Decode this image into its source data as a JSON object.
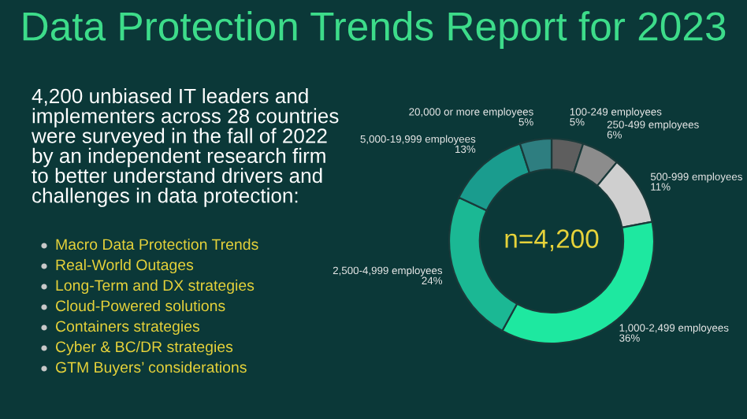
{
  "chart_data": {
    "type": "donut",
    "title": "Data Protection Trends Report for 2023",
    "subtitle": "4,200 unbiased IT leaders and\nimplementers across 28 countries\nwere surveyed in the fall of 2022\nby an independent research firm\nto better understand drivers and\nchallenges in data protection:",
    "categories": [
      "100-249 employees",
      "250-499 employees",
      "500-999 employees",
      "1,000-2,499 employees",
      "2,500-4,999 employees",
      "5,000-19,999 employees",
      "20,000 or more employees"
    ],
    "values": [
      5,
      6,
      11,
      36,
      24,
      13,
      5
    ],
    "value_labels": [
      "5%",
      "6%",
      "11%",
      "36%",
      "24%",
      "13%",
      "5%"
    ],
    "colors": [
      "#5e5e5e",
      "#8c8c8c",
      "#cfcfcf",
      "#1ee8a0",
      "#1bb894",
      "#1a9c8e",
      "#2e7e80"
    ],
    "annotations": [
      "n=4,200",
      "Macro Data Protection Trends",
      "Real-World Outages",
      "Long-Term and DX strategies",
      "Cloud-Powered solutions",
      "Containers strategies",
      "Cyber & BC/DR strategies",
      "GTM Buyers’ considerations"
    ],
    "legend": false
  }
}
